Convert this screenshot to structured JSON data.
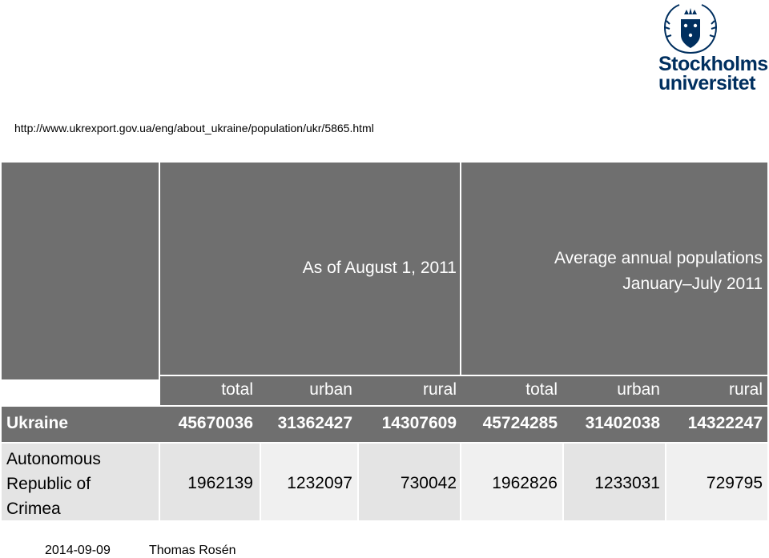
{
  "source_url": "http://www.ukrexport.gov.ua/eng/about_ukraine/population/ukr/5865.html",
  "logo": {
    "line1": "Stockholms",
    "line2": "universitet",
    "seal_text": "UNIVERSITET STOCKHOLMS"
  },
  "table": {
    "group_headers": [
      "As of August 1, 2011",
      "Average annual populations January–July 2011"
    ],
    "group_header_b_line1": "Average annual populations",
    "group_header_b_line2": "January–July 2011",
    "column_headers": [
      "total",
      "urban",
      "rural",
      "total",
      "urban",
      "rural"
    ],
    "rows": [
      {
        "label": "Ukraine",
        "values": [
          "45670036",
          "31362427",
          "14307609",
          "45724285",
          "31402038",
          "14322247"
        ]
      },
      {
        "label": "Autonomous Republic of Crimea",
        "label_lines": [
          "Autonomous",
          "Republic of",
          "Crimea"
        ],
        "values": [
          "1962139",
          "1232097",
          "730042",
          "1962826",
          "1233031",
          "729795"
        ]
      }
    ]
  },
  "footer": {
    "date": "2014-09-09",
    "author": "Thomas Rosén"
  },
  "colors": {
    "header_bg": "#6f6f6f",
    "row_alt_bg": "#e4e4e4",
    "logo_blue": "#002f5f"
  }
}
